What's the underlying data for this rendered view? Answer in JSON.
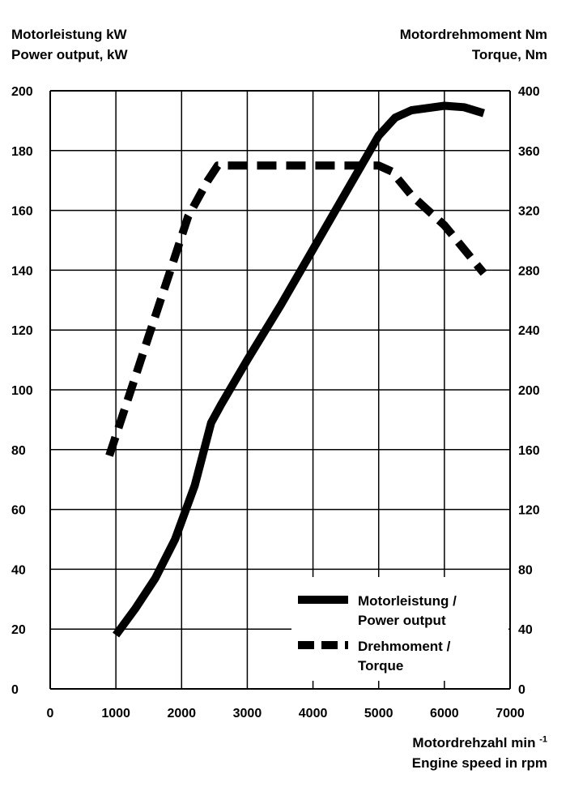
{
  "chart_data": {
    "type": "line",
    "left_axis_title": [
      "Motorleistung kW",
      "Power output, kW"
    ],
    "right_axis_title": [
      "Motordrehmoment Nm",
      "Torque, Nm"
    ],
    "x_axis_title": "Motordrehzahl min",
    "x_axis_title_sup": "-1",
    "x_axis_title_line2": "Engine speed in rpm",
    "x_ticks": [
      0,
      1000,
      2000,
      3000,
      4000,
      5000,
      6000,
      7000
    ],
    "y_left_ticks": [
      0,
      20,
      40,
      60,
      80,
      100,
      120,
      140,
      160,
      180,
      200
    ],
    "y_right_ticks": [
      0,
      40,
      80,
      120,
      160,
      200,
      240,
      280,
      320,
      360,
      400
    ],
    "xlim": [
      0,
      7000
    ],
    "ylim_left": [
      0,
      200
    ],
    "ylim_right": [
      0,
      400
    ],
    "grid": true,
    "legend_placement": "bottom-right",
    "series": [
      {
        "name": "Motorleistung / Power output",
        "axis": "left",
        "style": "solid",
        "x": [
          1000,
          1300,
          1600,
          1900,
          2200,
          2450,
          2600,
          3000,
          3500,
          4000,
          4500,
          5000,
          5250,
          5500,
          6000,
          6300,
          6600
        ],
        "y": [
          18,
          27,
          37,
          50,
          68,
          89,
          95,
          110,
          128,
          147,
          166,
          185,
          191,
          193.5,
          195,
          194.5,
          192.5
        ]
      },
      {
        "name": "Drehmoment / Torque",
        "axis": "right",
        "style": "dashed",
        "x": [
          900,
          1200,
          1500,
          1800,
          2100,
          2400,
          2550,
          2700,
          3000,
          4000,
          5000,
          5200,
          5500,
          6000,
          6600
        ],
        "y": [
          156,
          196,
          236,
          276,
          316,
          340,
          350,
          350,
          350,
          350,
          350,
          346,
          330,
          310,
          278
        ]
      }
    ],
    "legend": [
      {
        "line1": "Motorleistung /",
        "line2": "Power output",
        "style": "solid"
      },
      {
        "line1": "Drehmoment /",
        "line2": "Torque",
        "style": "dashed"
      }
    ]
  }
}
